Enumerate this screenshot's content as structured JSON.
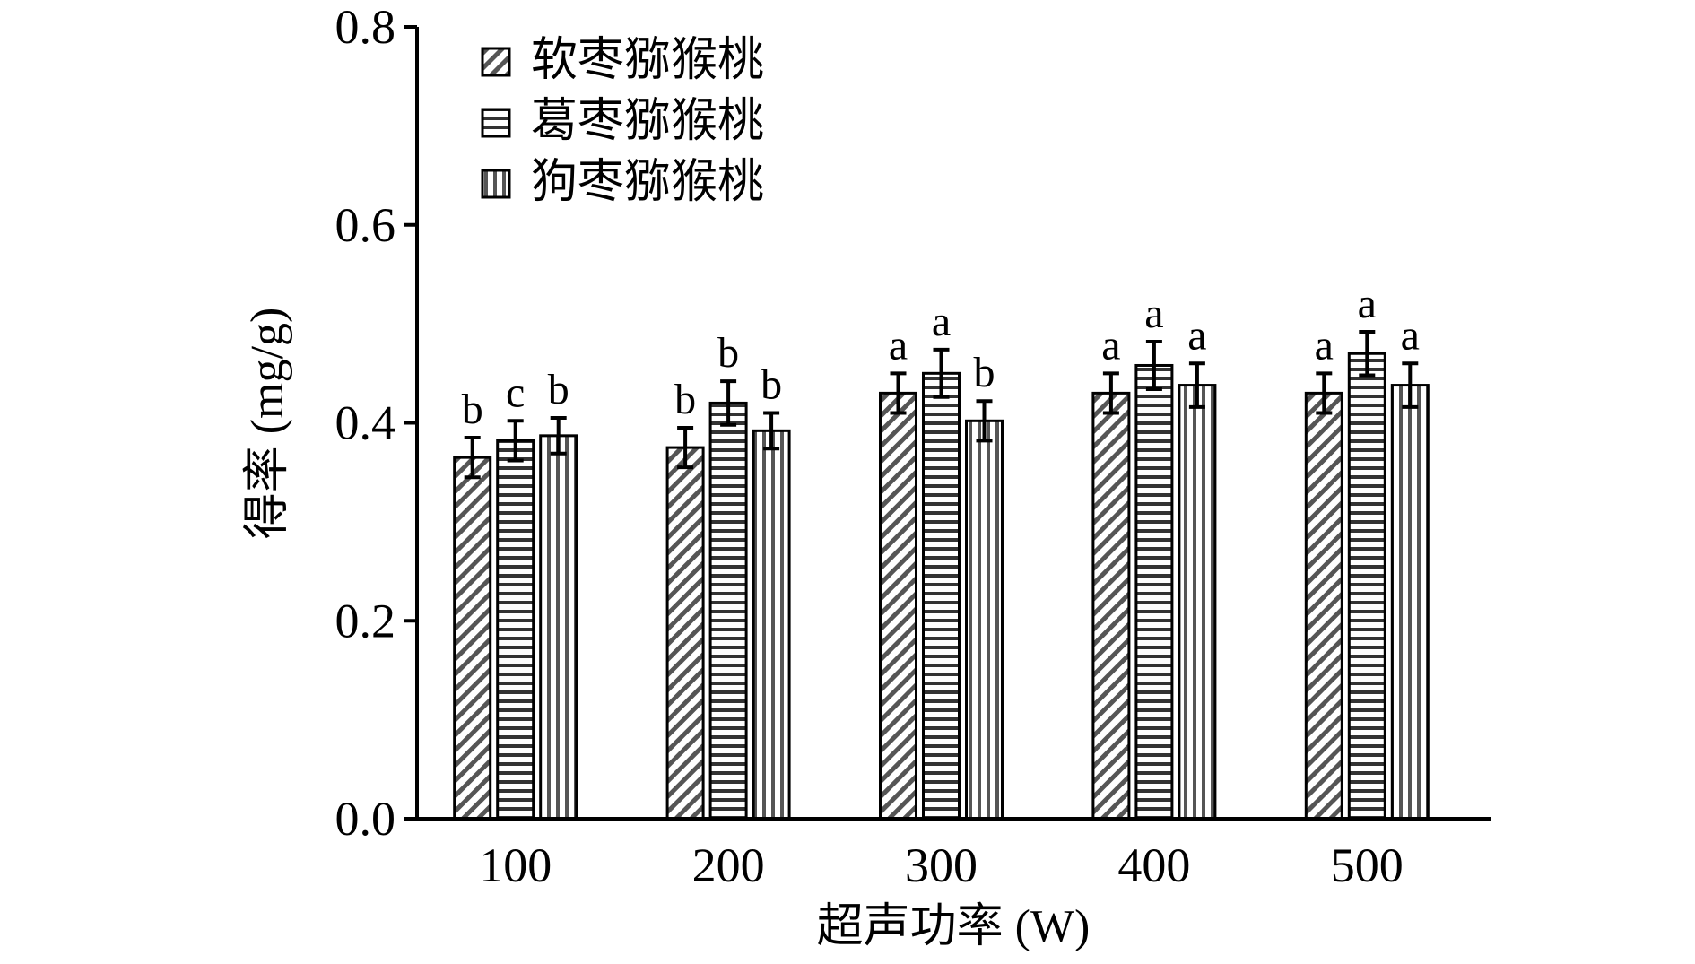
{
  "chart_data": {
    "type": "bar",
    "title": "",
    "xlabel": "超声功率 (W)",
    "ylabel": "得率 (mg/g)",
    "categories": [
      "100",
      "200",
      "300",
      "400",
      "500"
    ],
    "ylim": [
      0,
      0.8
    ],
    "yticks": [
      "0.0",
      "0.2",
      "0.4",
      "0.6",
      "0.8"
    ],
    "legend_position": "top-left",
    "series": [
      {
        "name": "软枣猕猴桃",
        "values": [
          0.365,
          0.375,
          0.43,
          0.43,
          0.43
        ],
        "errors": [
          0.02,
          0.02,
          0.02,
          0.02,
          0.02
        ],
        "sig": [
          "b",
          "b",
          "a",
          "a",
          "a"
        ],
        "pattern": "diagonal"
      },
      {
        "name": "葛枣猕猴桃",
        "values": [
          0.382,
          0.42,
          0.45,
          0.458,
          0.47
        ],
        "errors": [
          0.02,
          0.022,
          0.024,
          0.024,
          0.022
        ],
        "sig": [
          "c",
          "b",
          "a",
          "a",
          "a"
        ],
        "pattern": "horizontal"
      },
      {
        "name": "狗枣猕猴桃",
        "values": [
          0.387,
          0.392,
          0.402,
          0.438,
          0.438
        ],
        "errors": [
          0.018,
          0.018,
          0.02,
          0.022,
          0.022
        ],
        "sig": [
          "b",
          "b",
          "b",
          "a",
          "a"
        ],
        "pattern": "vertical"
      }
    ],
    "colors": {
      "axis": "#000000",
      "bar_fill": "#ffffff",
      "pattern": "#222222"
    }
  }
}
